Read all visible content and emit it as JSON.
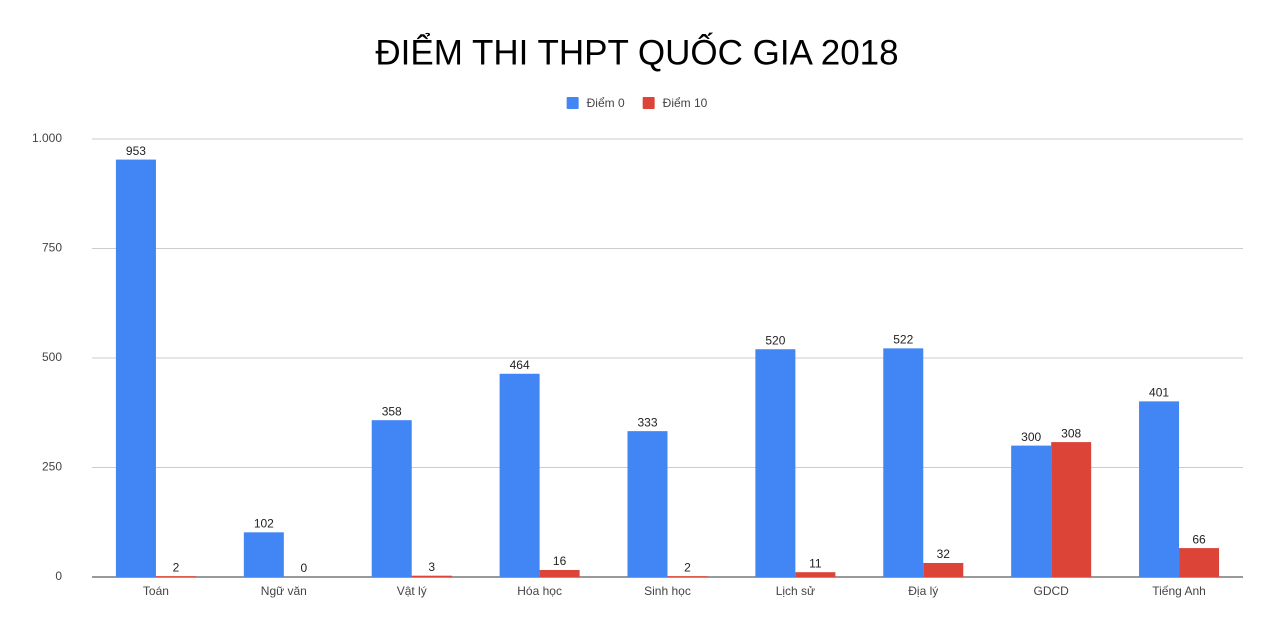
{
  "chart_data": {
    "type": "bar",
    "title": "ĐIỂM THI THPT QUỐC GIA 2018",
    "categories": [
      "Toán",
      "Ngữ văn",
      "Vật lý",
      "Hóa học",
      "Sinh học",
      "Lịch sử",
      "Địa lý",
      "GDCD",
      "Tiếng Anh"
    ],
    "series": [
      {
        "name": "Điểm 0",
        "color": "#4285f4",
        "values": [
          953,
          102,
          358,
          464,
          333,
          520,
          522,
          300,
          401
        ]
      },
      {
        "name": "Điểm 10",
        "color": "#db4437",
        "values": [
          2,
          0,
          3,
          16,
          2,
          11,
          32,
          308,
          66
        ]
      }
    ],
    "ylim": [
      0,
      1000
    ],
    "yticks": [
      0,
      250,
      500,
      750,
      {
        "value": 1000,
        "label": "1.000"
      }
    ],
    "grid": true,
    "legend": "top"
  }
}
